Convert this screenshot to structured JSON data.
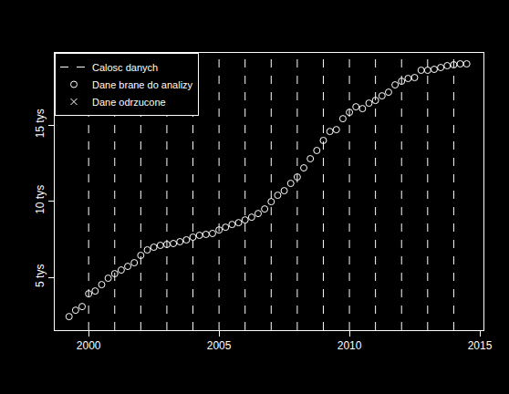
{
  "chart_data": {
    "type": "scatter",
    "xlim": [
      1998.7,
      2015.14
    ],
    "ylim": [
      1530,
      19740
    ],
    "xticks": [
      2000,
      2005,
      2010,
      2015
    ],
    "yticks": [
      {
        "value": 5000,
        "label": "5 tys"
      },
      {
        "value": 10000,
        "label": "10 tys"
      },
      {
        "value": 15000,
        "label": "15 tys"
      }
    ],
    "legend": "top-left",
    "series": [
      {
        "name": "Calosc danych",
        "type": "vline",
        "line_style": "dashed",
        "color": "#ffffff",
        "x": [
          2000,
          2001,
          2002,
          2003,
          2004,
          2005,
          2006,
          2007,
          2008,
          2009,
          2010,
          2011,
          2012,
          2013,
          2014
        ]
      },
      {
        "name": "Dane brane do analizy",
        "type": "scatter",
        "marker": "circle-open",
        "color": "#ffffff",
        "x": [
          1999.25,
          1999.5,
          1999.75,
          2000,
          2000.25,
          2000.5,
          2000.75,
          2001,
          2001.25,
          2001.5,
          2001.75,
          2002,
          2002.25,
          2002.5,
          2002.75,
          2003,
          2003.25,
          2003.5,
          2003.75,
          2004,
          2004.25,
          2004.5,
          2004.75,
          2005,
          2005.25,
          2005.5,
          2005.75,
          2006,
          2006.25,
          2006.5,
          2006.75,
          2007,
          2007.25,
          2007.5,
          2007.75,
          2008,
          2008.25,
          2008.5,
          2008.75,
          2009,
          2009.25,
          2009.5,
          2009.75,
          2010,
          2010.25,
          2010.5,
          2010.75,
          2011,
          2011.25,
          2011.5,
          2011.75,
          2012,
          2012.25,
          2012.5,
          2012.75,
          2013,
          2013.25,
          2013.5,
          2013.75,
          2014,
          2014.25,
          2014.5
        ],
        "values": [
          2420,
          2840,
          3080,
          3920,
          4100,
          4520,
          4940,
          5240,
          5480,
          5720,
          5960,
          6440,
          6800,
          6980,
          7100,
          7160,
          7220,
          7340,
          7460,
          7640,
          7760,
          7820,
          7880,
          8110,
          8290,
          8470,
          8590,
          8770,
          8950,
          9190,
          9490,
          9970,
          10390,
          10690,
          11170,
          11590,
          12190,
          12790,
          13330,
          13990,
          14580,
          14700,
          15420,
          15840,
          16200,
          16080,
          16440,
          16620,
          16920,
          17160,
          17640,
          17880,
          18060,
          18120,
          18600,
          18600,
          18660,
          18780,
          18900,
          18960,
          19020,
          19020
        ]
      },
      {
        "name": "Dane odrzucone",
        "type": "scatter",
        "marker": "x",
        "color": "#ffffff",
        "x": [],
        "values": []
      }
    ]
  }
}
